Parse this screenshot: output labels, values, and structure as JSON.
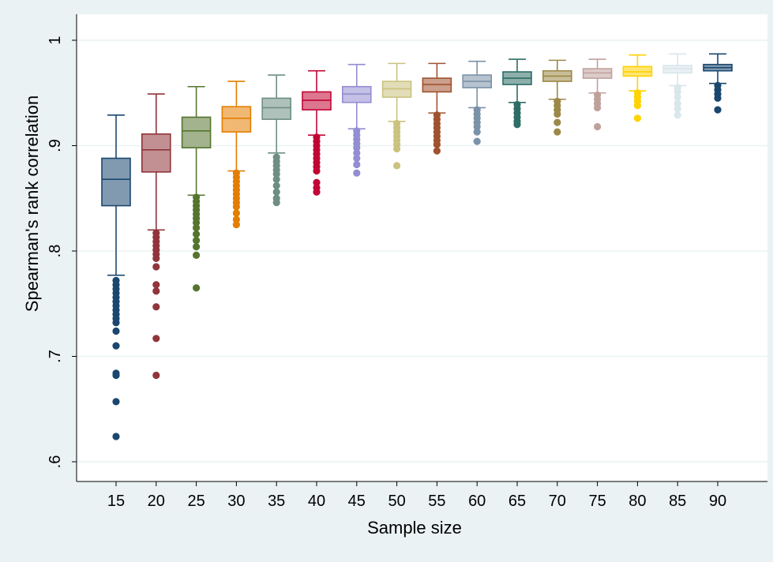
{
  "chart_data": {
    "type": "box",
    "title": "",
    "xlabel": "Sample size",
    "ylabel": "Spearman's rank correlation",
    "ylim": [
      0.6,
      1.0
    ],
    "yticks": [
      0.6,
      0.7,
      0.8,
      0.9,
      1.0
    ],
    "ytick_labels": [
      ".6",
      ".7",
      ".8",
      ".9",
      "1"
    ],
    "grid": true,
    "categories": [
      "15",
      "20",
      "25",
      "30",
      "35",
      "40",
      "45",
      "50",
      "55",
      "60",
      "65",
      "70",
      "75",
      "80",
      "85",
      "90"
    ],
    "boxes": [
      {
        "category": "15",
        "color": "#1a476f",
        "whisker_low": 0.777,
        "q1": 0.843,
        "median": 0.868,
        "q3": 0.888,
        "whisker_high": 0.929,
        "outliers": [
          0.772,
          0.768,
          0.764,
          0.76,
          0.756,
          0.752,
          0.748,
          0.744,
          0.74,
          0.736,
          0.732,
          0.724,
          0.71,
          0.684,
          0.682,
          0.657,
          0.624
        ]
      },
      {
        "category": "20",
        "color": "#90353b",
        "whisker_low": 0.82,
        "q1": 0.875,
        "median": 0.896,
        "q3": 0.911,
        "whisker_high": 0.949,
        "outliers": [
          0.817,
          0.813,
          0.809,
          0.805,
          0.801,
          0.797,
          0.793,
          0.785,
          0.768,
          0.762,
          0.747,
          0.717,
          0.682
        ]
      },
      {
        "category": "25",
        "color": "#55752f",
        "whisker_low": 0.853,
        "q1": 0.898,
        "median": 0.914,
        "q3": 0.927,
        "whisker_high": 0.956,
        "outliers": [
          0.851,
          0.847,
          0.843,
          0.839,
          0.835,
          0.831,
          0.827,
          0.822,
          0.816,
          0.81,
          0.804,
          0.796,
          0.765
        ]
      },
      {
        "category": "30",
        "color": "#e37e00",
        "whisker_low": 0.876,
        "q1": 0.913,
        "median": 0.926,
        "q3": 0.937,
        "whisker_high": 0.961,
        "outliers": [
          0.874,
          0.87,
          0.866,
          0.862,
          0.858,
          0.854,
          0.85,
          0.846,
          0.842,
          0.836,
          0.83,
          0.825
        ]
      },
      {
        "category": "35",
        "color": "#6e8e84",
        "whisker_low": 0.893,
        "q1": 0.925,
        "median": 0.936,
        "q3": 0.945,
        "whisker_high": 0.967,
        "outliers": [
          0.889,
          0.885,
          0.881,
          0.877,
          0.873,
          0.868,
          0.862,
          0.856,
          0.85,
          0.846
        ]
      },
      {
        "category": "40",
        "color": "#c10534",
        "whisker_low": 0.91,
        "q1": 0.934,
        "median": 0.943,
        "q3": 0.951,
        "whisker_high": 0.971,
        "outliers": [
          0.908,
          0.904,
          0.9,
          0.896,
          0.892,
          0.888,
          0.884,
          0.88,
          0.876,
          0.865,
          0.86,
          0.856
        ]
      },
      {
        "category": "45",
        "color": "#938dd2",
        "whisker_low": 0.916,
        "q1": 0.941,
        "median": 0.949,
        "q3": 0.956,
        "whisker_high": 0.977,
        "outliers": [
          0.914,
          0.91,
          0.906,
          0.902,
          0.898,
          0.893,
          0.888,
          0.882,
          0.874
        ]
      },
      {
        "category": "50",
        "color": "#cac27e",
        "whisker_low": 0.923,
        "q1": 0.946,
        "median": 0.954,
        "q3": 0.961,
        "whisker_high": 0.978,
        "outliers": [
          0.921,
          0.917,
          0.913,
          0.909,
          0.905,
          0.901,
          0.897,
          0.881
        ]
      },
      {
        "category": "55",
        "color": "#a0522d",
        "whisker_low": 0.931,
        "q1": 0.951,
        "median": 0.958,
        "q3": 0.964,
        "whisker_high": 0.978,
        "outliers": [
          0.929,
          0.925,
          0.921,
          0.917,
          0.913,
          0.909,
          0.905,
          0.901,
          0.895
        ]
      },
      {
        "category": "60",
        "color": "#7b92a8",
        "whisker_low": 0.936,
        "q1": 0.955,
        "median": 0.961,
        "q3": 0.967,
        "whisker_high": 0.98,
        "outliers": [
          0.934,
          0.93,
          0.926,
          0.922,
          0.918,
          0.913,
          0.904
        ]
      },
      {
        "category": "65",
        "color": "#2d6d66",
        "whisker_low": 0.941,
        "q1": 0.958,
        "median": 0.964,
        "q3": 0.97,
        "whisker_high": 0.982,
        "outliers": [
          0.939,
          0.935,
          0.931,
          0.927,
          0.923,
          0.92
        ]
      },
      {
        "category": "70",
        "color": "#9c8847",
        "whisker_low": 0.944,
        "q1": 0.961,
        "median": 0.966,
        "q3": 0.971,
        "whisker_high": 0.981,
        "outliers": [
          0.942,
          0.938,
          0.934,
          0.93,
          0.922,
          0.913
        ]
      },
      {
        "category": "75",
        "color": "#bfa19c",
        "whisker_low": 0.95,
        "q1": 0.964,
        "median": 0.969,
        "q3": 0.973,
        "whisker_high": 0.982,
        "outliers": [
          0.948,
          0.944,
          0.94,
          0.936,
          0.918
        ]
      },
      {
        "category": "80",
        "color": "#ffd200",
        "whisker_low": 0.952,
        "q1": 0.966,
        "median": 0.97,
        "q3": 0.975,
        "whisker_high": 0.986,
        "outliers": [
          0.95,
          0.946,
          0.942,
          0.938,
          0.926
        ]
      },
      {
        "category": "85",
        "color": "#d9e6eb",
        "whisker_low": 0.957,
        "q1": 0.969,
        "median": 0.973,
        "q3": 0.976,
        "whisker_high": 0.987,
        "outliers": [
          0.955,
          0.951,
          0.946,
          0.94,
          0.935,
          0.929
        ]
      },
      {
        "category": "90",
        "color": "#1a476f",
        "whisker_low": 0.959,
        "q1": 0.971,
        "median": 0.974,
        "q3": 0.977,
        "whisker_high": 0.987,
        "outliers": [
          0.957,
          0.953,
          0.949,
          0.945,
          0.934
        ]
      }
    ]
  }
}
